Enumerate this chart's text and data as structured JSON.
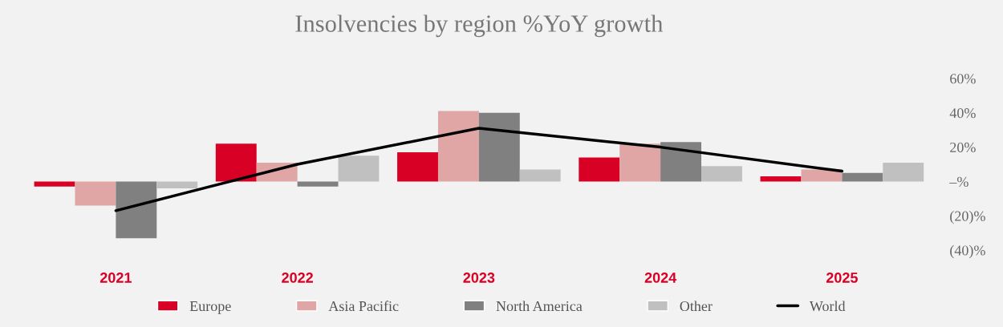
{
  "chart_data": {
    "type": "bar",
    "title": "Insolvencies by region %YoY growth",
    "categories": [
      "2021",
      "2022",
      "2023",
      "2024",
      "2025"
    ],
    "series": [
      {
        "name": "Europe",
        "color": "#d90026",
        "values": [
          -3,
          22,
          17,
          14,
          3
        ]
      },
      {
        "name": "Asia Pacific",
        "color": "#e0a5a5",
        "values": [
          -14,
          11,
          41,
          22,
          7
        ]
      },
      {
        "name": "North America",
        "color": "#808080",
        "values": [
          -33,
          -3,
          40,
          23,
          5
        ]
      },
      {
        "name": "Other",
        "color": "#c0c0c0",
        "values": [
          -4,
          15,
          7,
          9,
          11
        ]
      },
      {
        "name": "World",
        "color": "#000000",
        "type": "line",
        "values": [
          -17,
          10,
          31,
          20,
          6
        ]
      }
    ],
    "ylim": [
      -40,
      60
    ],
    "yticks": [
      {
        "value": 60,
        "label": "60%"
      },
      {
        "value": 40,
        "label": "40%"
      },
      {
        "value": 20,
        "label": "20%"
      },
      {
        "value": 0,
        "label": "–%"
      },
      {
        "value": -20,
        "label": "(20)%"
      },
      {
        "value": -40,
        "label": "(40)%"
      }
    ],
    "grid": false,
    "legend": "bottom",
    "marker": "none"
  }
}
